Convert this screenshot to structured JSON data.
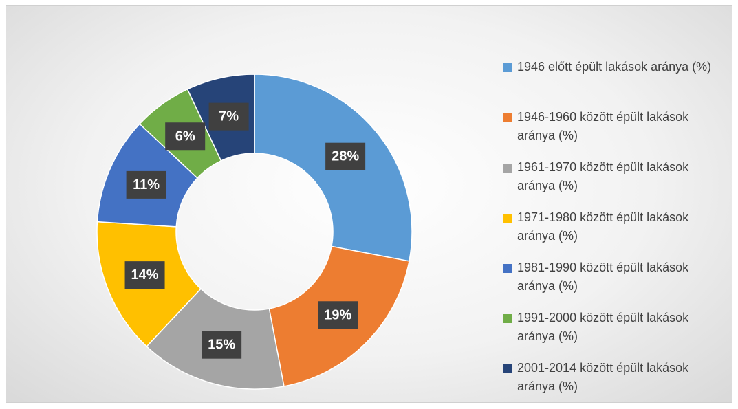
{
  "chart_data": {
    "type": "donut",
    "categories": [
      "1946 előtt épült lakások aránya (%)",
      "1946-1960 között épült lakások aránya (%)",
      "1961-1970 között épült lakások aránya (%)",
      "1971-1980 között épült lakások aránya (%)",
      "1981-1990 között épült lakások aránya (%)",
      "1991-2000 között épült lakások aránya (%)",
      "2001-2014 között épült lakások aránya (%)"
    ],
    "values": [
      28,
      19,
      15,
      14,
      11,
      6,
      7
    ],
    "value_labels": [
      "28%",
      "19%",
      "15%",
      "14%",
      "11%",
      "6%",
      "7%"
    ],
    "colors": [
      "#5b9bd5",
      "#ed7d31",
      "#a5a5a5",
      "#ffc000",
      "#4472c4",
      "#70ad47",
      "#264478"
    ],
    "legend": "right"
  }
}
